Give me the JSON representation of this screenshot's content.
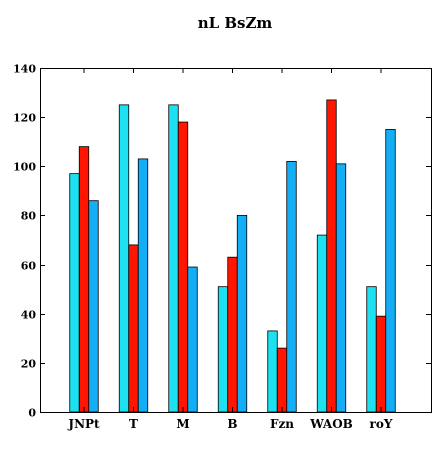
{
  "chart_data": {
    "type": "bar",
    "title": "nL BsZm",
    "xlabel": "",
    "ylabel": "",
    "categories": [
      "JNPt",
      "T",
      "M",
      "B",
      "Fzn",
      "WAOB",
      "roY"
    ],
    "series": [
      {
        "values": [
          97,
          125,
          125,
          51,
          33,
          72,
          51
        ],
        "color": "#1de0f0"
      },
      {
        "values": [
          108,
          68,
          118,
          63,
          26,
          127,
          39
        ],
        "color": "#ff1500"
      },
      {
        "values": [
          86,
          103,
          59,
          80,
          102,
          101,
          115
        ],
        "color": "#13aef5"
      }
    ],
    "ylim": [
      0,
      140
    ],
    "yticks": [
      0,
      20,
      40,
      60,
      80,
      100,
      120,
      140
    ],
    "grid": false,
    "legend": "none"
  }
}
